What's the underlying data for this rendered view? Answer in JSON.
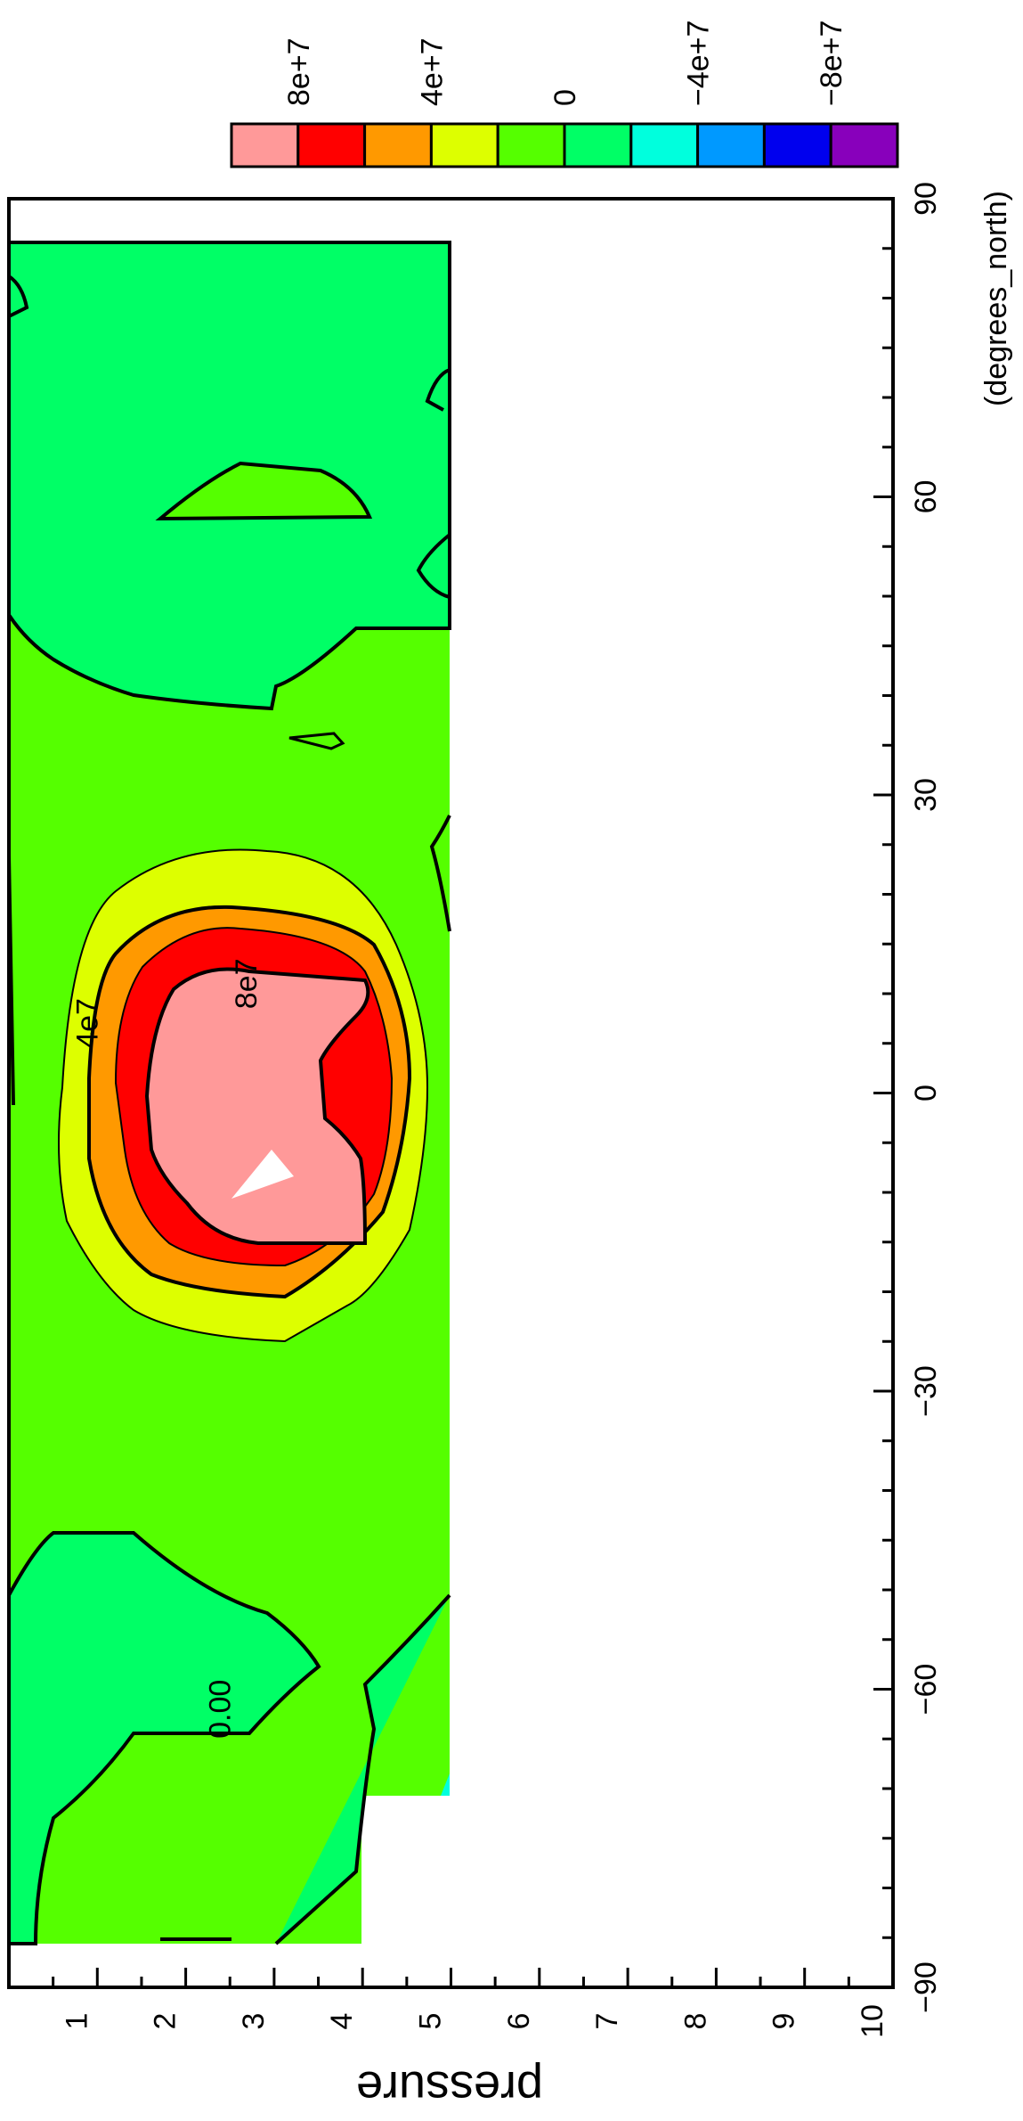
{
  "chart_data": {
    "type": "heatmap",
    "orientation": "rotated 90 degrees clockwise (latitude runs along the page height)",
    "xlabel": "(degrees_north)",
    "ylabel": "pressure",
    "xlim": [
      -90,
      90
    ],
    "ylim": [
      0,
      10
    ],
    "x_ticks": [
      -90,
      -60,
      -30,
      0,
      30,
      60,
      90
    ],
    "y_ticks": [
      1,
      2,
      3,
      4,
      5,
      6,
      7,
      8,
      9,
      10
    ],
    "colorbar": {
      "labels": [
        {
          "text": "8e+7",
          "value": 80000000
        },
        {
          "text": "4e+7",
          "value": 40000000
        },
        {
          "text": "0",
          "value": 0
        },
        {
          "text": "−4e+7",
          "value": -40000000
        },
        {
          "text": "−8e+7",
          "value": -80000000
        }
      ],
      "levels": [
        100000000,
        80000000,
        60000000,
        40000000,
        20000000,
        0,
        -20000000,
        -40000000,
        -60000000,
        -80000000,
        -100000000
      ],
      "colors": [
        "#ff9999",
        "#ff0000",
        "#ff9900",
        "#ddff00",
        "#55ff00",
        "#00ff66",
        "#00ffdd",
        "#0099ff",
        "#0000ee",
        "#8800bb"
      ]
    },
    "domain": {
      "lat_min": -85,
      "lat_max": 85,
      "pressure_min": 0,
      "pressure_max": 5
    },
    "background_color": "#55ff00",
    "features": [
      {
        "name": "tropical maximum",
        "lat_range": [
          -25,
          25
        ],
        "pressure_range": [
          0.5,
          5
        ],
        "peak_value": 100000000,
        "peak_lat": -3,
        "peak_pressure": 3
      },
      {
        "name": "southern high-latitude region",
        "lat_range": [
          -85,
          -45
        ],
        "pressure_range": [
          0,
          4
        ],
        "value": "0 to 2e+7"
      },
      {
        "name": "northern mid-latitude cell",
        "lat_range": [
          47,
          85
        ],
        "pressure_range": [
          0,
          5
        ],
        "value": "0 to 2e+7"
      },
      {
        "name": "missing data corner",
        "lat_range": [
          -85,
          -75
        ],
        "pressure_range": [
          4,
          5
        ],
        "value": null
      }
    ],
    "contour_labels": [
      {
        "text": "0.00",
        "lat": -62,
        "pressure": 2.5
      },
      {
        "text": "4e7",
        "lat": 7,
        "pressure": 1
      },
      {
        "text": "8e7",
        "lat": 11,
        "pressure": 2.8
      }
    ]
  }
}
